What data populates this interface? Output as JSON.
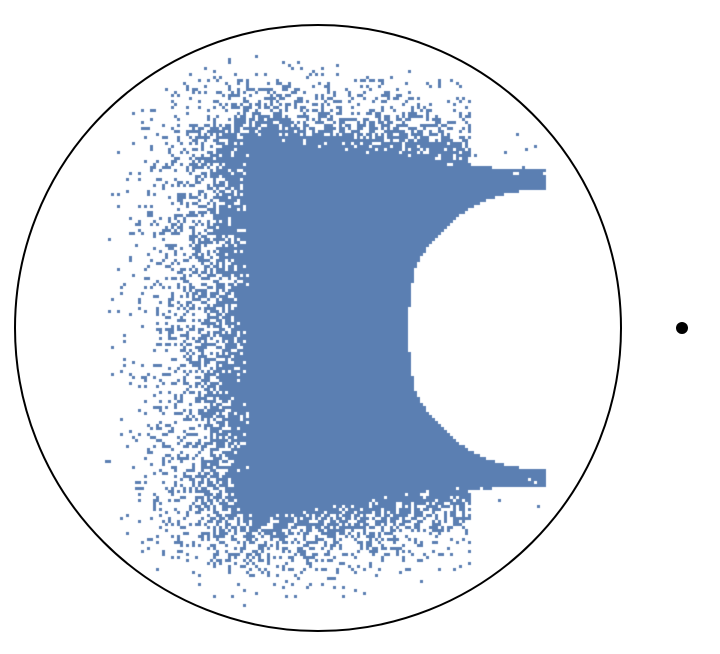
{
  "figure": {
    "title": "",
    "colors": {
      "points": "#5b7fb2",
      "circle": "#000000",
      "external_point": "#000000",
      "background": "#ffffff"
    },
    "description_items": {
      "disk": "boundary-circle",
      "cloud": "point-cloud",
      "cavity": "crescent-cavity",
      "marker": "external-point"
    }
  }
}
